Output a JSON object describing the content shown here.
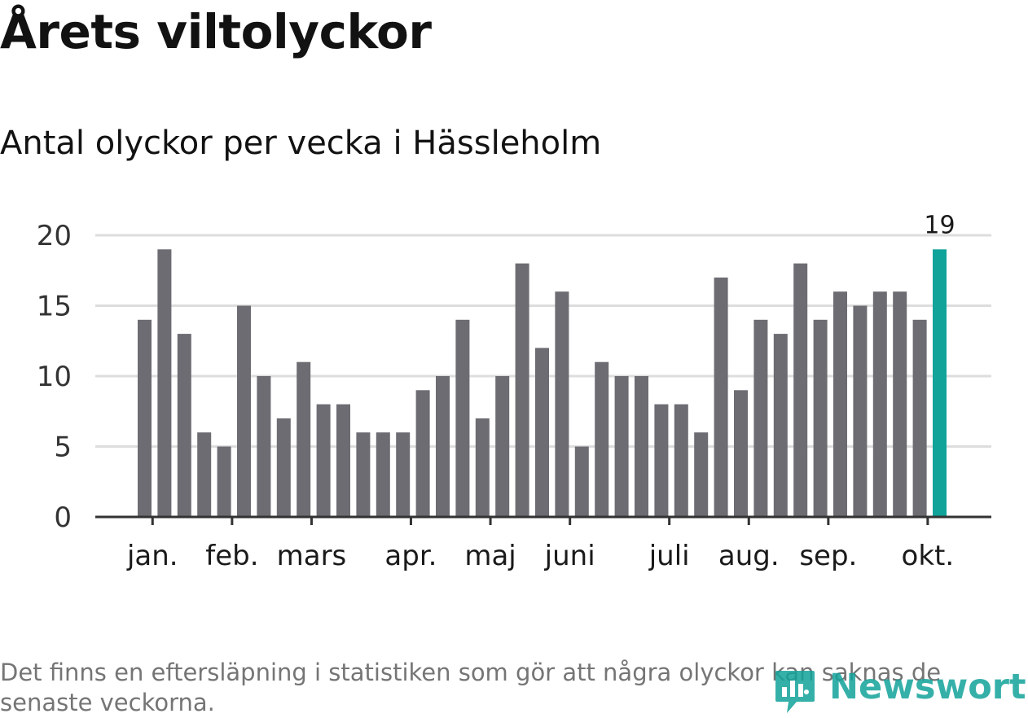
{
  "header": {
    "title": "Årets viltolyckor",
    "subtitle": "Antal olyckor per vecka i Hässleholm"
  },
  "footer": {
    "note": "Det finns en eftersläpning i statistiken som gör att några olyckor kan saknas de senaste veckorna.",
    "brand": "Newsworthy"
  },
  "colors": {
    "bar": "#6d6c72",
    "highlight": "#10a39a",
    "grid": "#dddddd",
    "axis": "#333333",
    "text": "#333333",
    "logo": "#12a39b"
  },
  "chart_data": {
    "type": "bar",
    "title": "Antal olyckor per vecka i Hässleholm",
    "xlabel": "",
    "ylabel": "",
    "ylim": [
      0,
      20
    ],
    "yticks": [
      0,
      5,
      10,
      15,
      20
    ],
    "grid": true,
    "values": [
      14,
      19,
      13,
      6,
      5,
      15,
      10,
      7,
      11,
      8,
      8,
      6,
      6,
      6,
      9,
      10,
      14,
      7,
      10,
      18,
      12,
      16,
      5,
      11,
      10,
      10,
      8,
      8,
      6,
      17,
      9,
      14,
      13,
      18,
      14,
      16,
      15,
      16,
      16,
      14,
      19
    ],
    "highlight_index": 40,
    "highlight_label": "19",
    "month_ticks": [
      {
        "label": "jan.",
        "week": 0.4
      },
      {
        "label": "feb.",
        "week": 4.4
      },
      {
        "label": "mars",
        "week": 8.4
      },
      {
        "label": "apr.",
        "week": 13.4
      },
      {
        "label": "maj",
        "week": 17.4
      },
      {
        "label": "juni",
        "week": 21.4
      },
      {
        "label": "juli",
        "week": 26.4
      },
      {
        "label": "aug.",
        "week": 30.4
      },
      {
        "label": "sep.",
        "week": 34.4
      },
      {
        "label": "okt.",
        "week": 39.4
      }
    ]
  }
}
